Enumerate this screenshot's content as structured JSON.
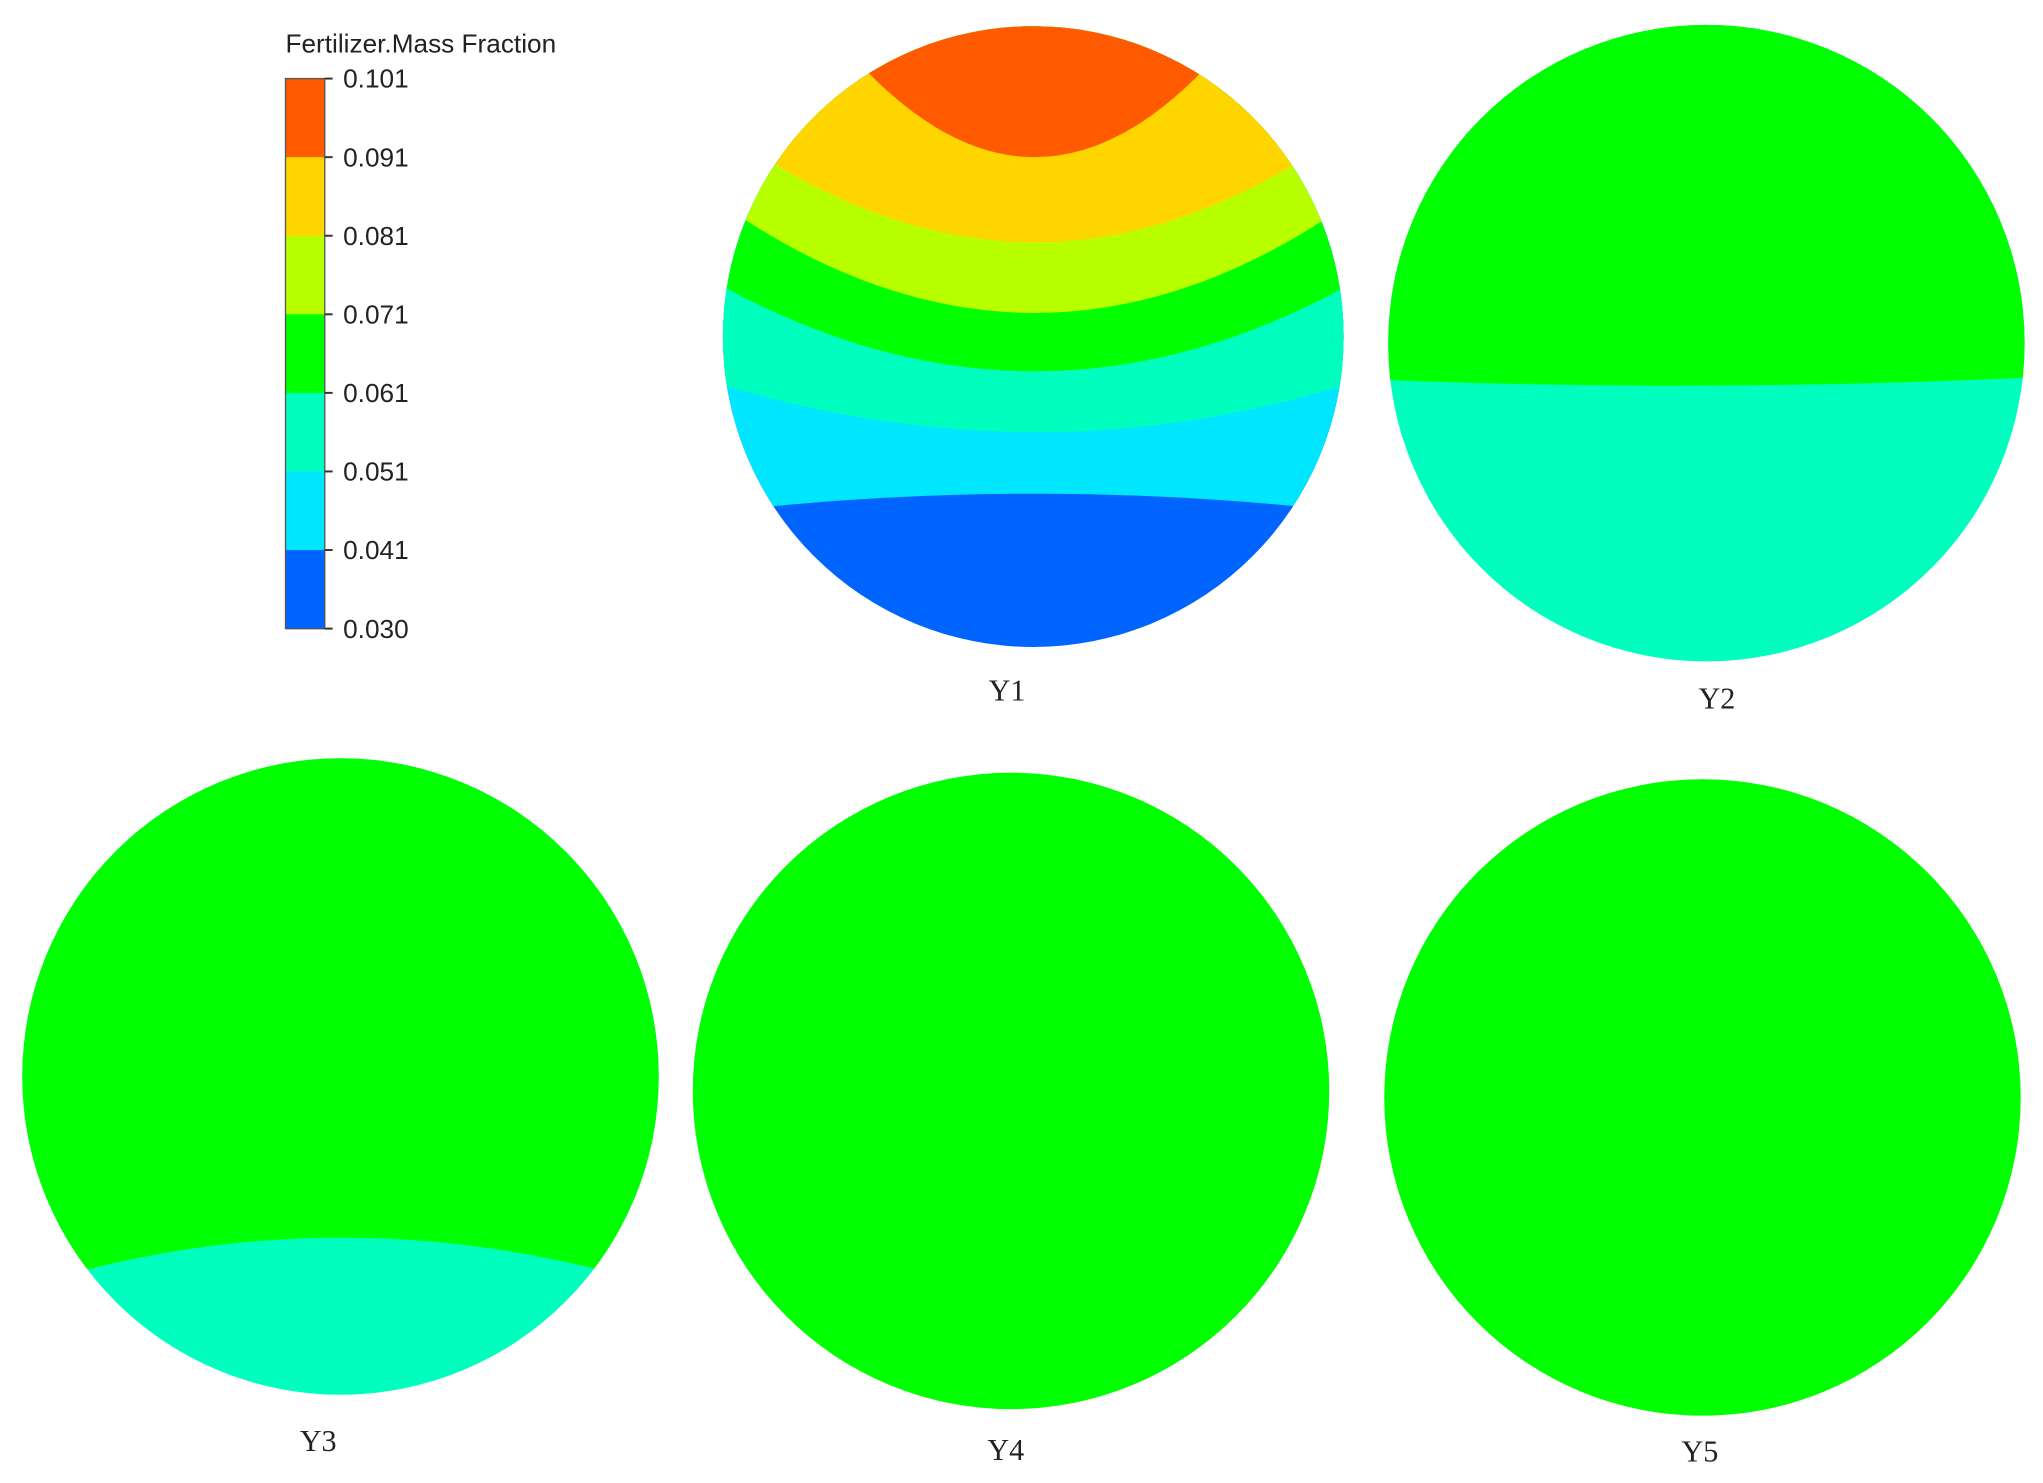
{
  "legend": {
    "title": "Fertilizer.Mass Fraction",
    "ticks": [
      "0.101",
      "0.091",
      "0.081",
      "0.071",
      "0.061",
      "0.051",
      "0.041",
      "0.030"
    ],
    "colors": [
      "#ff5a00",
      "#ffd500",
      "#b8ff00",
      "#00ff00",
      "#00ffbe",
      "#00e6ff",
      "#0064ff"
    ]
  },
  "panels": [
    {
      "label": "Y1"
    },
    {
      "label": "Y2"
    },
    {
      "label": "Y3"
    },
    {
      "label": "Y4"
    },
    {
      "label": "Y5"
    }
  ]
}
